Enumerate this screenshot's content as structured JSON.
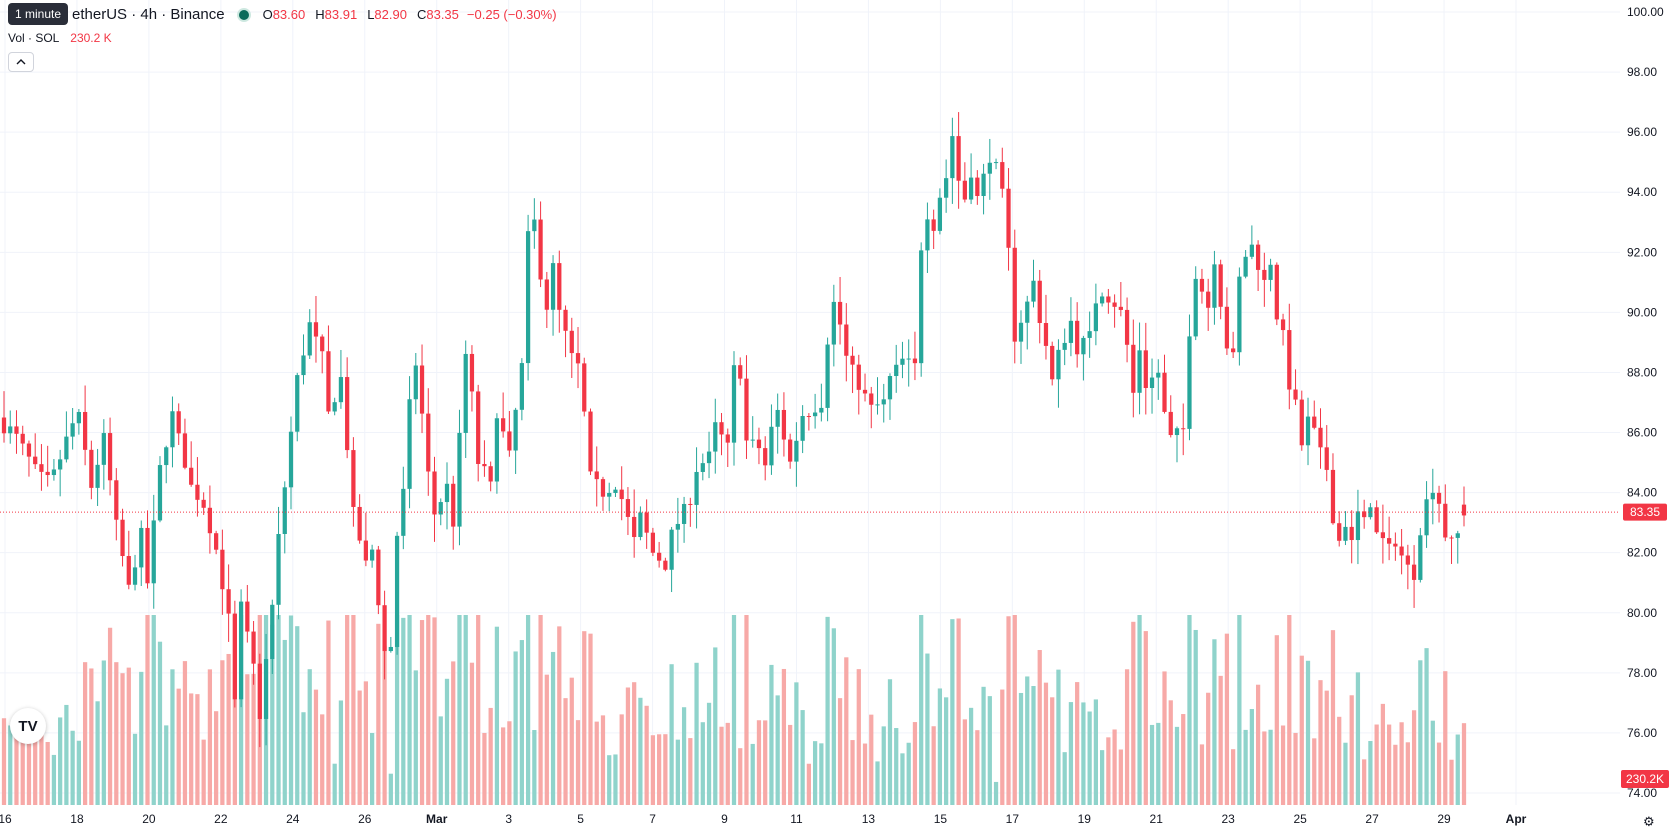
{
  "header": {
    "symbol": "etherUS · 4h · Binance",
    "tooltip": "1 minute",
    "ohlc": {
      "o_label": "O",
      "o": "83.60",
      "h_label": "H",
      "h": "83.91",
      "l_label": "L",
      "l": "82.90",
      "c_label": "C",
      "c": "83.35",
      "change": "−0.25 (−0.30%)"
    },
    "volume_label": "Vol · SOL",
    "volume_value": "230.2 K",
    "collapse_icon": "chevron-up-icon",
    "logo_text": "TV"
  },
  "colors": {
    "up": "#26a69a",
    "down": "#f23645",
    "up_vol": "#8fd3cb",
    "down_vol": "#f7a9a7"
  },
  "chart_data": {
    "type": "candlestick",
    "timeframe": "4h",
    "x_ticks": [
      "16",
      "18",
      "20",
      "22",
      "24",
      "26",
      "Mar",
      "3",
      "5",
      "7",
      "9",
      "11",
      "13",
      "15",
      "17",
      "19",
      "21",
      "23",
      "25",
      "27",
      "29",
      "Apr"
    ],
    "y_ticks": [
      "100.00",
      "98.00",
      "96.00",
      "94.00",
      "92.00",
      "90.00",
      "88.00",
      "86.00",
      "84.00",
      "82.00",
      "80.00",
      "78.00",
      "76.00",
      "74.00"
    ],
    "ylim": [
      73.6,
      100.4
    ],
    "last_price": 83.35,
    "last_price_label": "83.35",
    "volume_label": "230.2K",
    "path": [
      [
        0,
        86.2
      ],
      [
        7,
        84.4
      ],
      [
        12,
        86.5
      ],
      [
        14,
        84.2
      ],
      [
        16,
        85.8
      ],
      [
        18,
        82.9
      ],
      [
        20,
        80.8
      ],
      [
        22,
        82.6
      ],
      [
        23,
        81.0
      ],
      [
        25,
        84.8
      ],
      [
        27,
        86.6
      ],
      [
        29,
        85.0
      ],
      [
        30,
        84.2
      ],
      [
        32,
        83.6
      ],
      [
        34,
        82.1
      ],
      [
        36,
        79.8
      ],
      [
        37,
        77.0
      ],
      [
        38,
        80.2
      ],
      [
        40,
        78.2
      ],
      [
        41,
        76.6
      ],
      [
        43,
        80.2
      ],
      [
        44,
        82.5
      ],
      [
        45,
        84.2
      ],
      [
        47,
        87.8
      ],
      [
        49,
        89.6
      ],
      [
        51,
        88.5
      ],
      [
        52,
        86.6
      ],
      [
        54,
        87.8
      ],
      [
        56,
        83.3
      ],
      [
        58,
        81.6
      ],
      [
        59,
        82.1
      ],
      [
        61,
        78.7
      ],
      [
        62,
        78.9
      ],
      [
        63,
        82.6
      ],
      [
        64,
        84.0
      ],
      [
        65,
        86.9
      ],
      [
        66,
        88.3
      ],
      [
        67,
        86.6
      ],
      [
        68,
        84.6
      ],
      [
        69,
        83.3
      ],
      [
        71,
        84.2
      ],
      [
        72,
        83.0
      ],
      [
        74,
        88.6
      ],
      [
        75,
        87.2
      ],
      [
        76,
        85.0
      ],
      [
        77,
        84.7
      ],
      [
        78,
        84.2
      ],
      [
        79,
        86.7
      ],
      [
        81,
        85.2
      ],
      [
        83,
        88.2
      ],
      [
        84,
        92.5
      ],
      [
        85,
        93.0
      ],
      [
        86,
        91.3
      ],
      [
        87,
        90.2
      ],
      [
        88,
        91.5
      ],
      [
        89,
        90.0
      ],
      [
        91,
        88.5
      ],
      [
        92,
        88.2
      ],
      [
        93,
        86.6
      ],
      [
        94,
        84.5
      ],
      [
        96,
        84.0
      ],
      [
        98,
        84.3
      ],
      [
        99,
        83.8
      ],
      [
        101,
        82.4
      ],
      [
        102,
        83.2
      ],
      [
        104,
        82.0
      ],
      [
        106,
        81.6
      ],
      [
        107,
        82.6
      ],
      [
        108,
        83.0
      ],
      [
        110,
        83.8
      ],
      [
        111,
        84.8
      ],
      [
        113,
        85.2
      ],
      [
        114,
        86.2
      ],
      [
        116,
        85.5
      ],
      [
        117,
        88.1
      ],
      [
        118,
        88.0
      ],
      [
        119,
        85.7
      ],
      [
        121,
        85.5
      ],
      [
        122,
        84.9
      ],
      [
        123,
        86.1
      ],
      [
        124,
        86.7
      ],
      [
        126,
        85.0
      ],
      [
        128,
        86.6
      ],
      [
        129,
        86.7
      ],
      [
        131,
        87.0
      ],
      [
        132,
        89.1
      ],
      [
        133,
        90.3
      ],
      [
        134,
        89.6
      ],
      [
        135,
        88.5
      ],
      [
        137,
        87.6
      ],
      [
        138,
        87.2
      ],
      [
        139,
        86.8
      ],
      [
        141,
        87.0
      ],
      [
        142,
        87.8
      ],
      [
        143,
        88.1
      ],
      [
        144,
        88.4
      ],
      [
        146,
        88.2
      ],
      [
        147,
        92.2
      ],
      [
        148,
        93.3
      ],
      [
        149,
        92.9
      ],
      [
        150,
        93.9
      ],
      [
        151,
        94.5
      ],
      [
        152,
        95.9
      ],
      [
        153,
        94.4
      ],
      [
        154,
        93.8
      ],
      [
        155,
        94.7
      ],
      [
        156,
        93.8
      ],
      [
        158,
        95.2
      ],
      [
        159,
        94.8
      ],
      [
        160,
        93.9
      ],
      [
        161,
        92.0
      ],
      [
        162,
        89.2
      ],
      [
        164,
        90.3
      ],
      [
        165,
        91.0
      ],
      [
        166,
        89.8
      ],
      [
        167,
        88.9
      ],
      [
        168,
        87.7
      ],
      [
        169,
        88.6
      ],
      [
        171,
        89.7
      ],
      [
        172,
        88.8
      ],
      [
        174,
        89.2
      ],
      [
        175,
        90.4
      ],
      [
        176,
        90.7
      ],
      [
        178,
        90.3
      ],
      [
        179,
        90.0
      ],
      [
        180,
        88.9
      ],
      [
        181,
        87.3
      ],
      [
        182,
        88.8
      ],
      [
        183,
        87.6
      ],
      [
        185,
        88.0
      ],
      [
        186,
        86.6
      ],
      [
        187,
        85.8
      ],
      [
        189,
        86.1
      ],
      [
        190,
        89.4
      ],
      [
        191,
        91.3
      ],
      [
        193,
        90.2
      ],
      [
        194,
        91.8
      ],
      [
        196,
        88.9
      ],
      [
        197,
        88.5
      ],
      [
        198,
        91.1
      ],
      [
        199,
        91.9
      ],
      [
        200,
        92.2
      ],
      [
        202,
        91.0
      ],
      [
        203,
        91.7
      ],
      [
        204,
        89.9
      ],
      [
        205,
        89.2
      ],
      [
        206,
        87.6
      ],
      [
        207,
        86.9
      ],
      [
        208,
        85.6
      ],
      [
        209,
        86.4
      ],
      [
        210,
        86.0
      ],
      [
        211,
        85.3
      ],
      [
        212,
        84.8
      ],
      [
        213,
        83.2
      ],
      [
        214,
        82.4
      ],
      [
        215,
        83.0
      ],
      [
        216,
        82.3
      ],
      [
        217,
        83.3
      ],
      [
        218,
        83.0
      ],
      [
        219,
        83.7
      ],
      [
        220,
        82.6
      ],
      [
        221,
        82.4
      ],
      [
        222,
        82.1
      ],
      [
        223,
        82.4
      ],
      [
        224,
        81.9
      ],
      [
        225,
        81.5
      ],
      [
        226,
        81.3
      ],
      [
        227,
        82.8
      ],
      [
        228,
        83.7
      ],
      [
        229,
        84.2
      ],
      [
        230,
        83.7
      ],
      [
        231,
        82.6
      ],
      [
        232,
        82.3
      ],
      [
        233,
        82.6
      ],
      [
        234,
        83.35
      ]
    ]
  }
}
